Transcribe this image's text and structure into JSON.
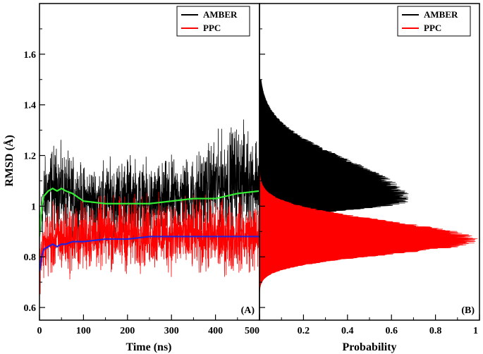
{
  "chart_data": [
    {
      "type": "line",
      "panel_label": "(A)",
      "xlabel": "Time (ns)",
      "ylabel": "RMSD (Å)",
      "xlim": [
        0,
        500
      ],
      "ylim": [
        0.55,
        1.8
      ],
      "x_ticks": [
        "0",
        "100",
        "200",
        "300",
        "400",
        "500"
      ],
      "y_ticks": [
        "0.6",
        "0.8",
        "1",
        "1.2",
        "1.4",
        "1.6"
      ],
      "legend_position": "top-right",
      "legend": [
        "AMBER",
        "PPC"
      ],
      "series": [
        {
          "name": "AMBER",
          "color": "#000000",
          "style": "fluctuating",
          "x": [
            0,
            10,
            25,
            50,
            75,
            100,
            150,
            200,
            250,
            300,
            350,
            400,
            450,
            500
          ],
          "mean": [
            0.9,
            1.03,
            1.07,
            1.06,
            1.04,
            1.02,
            1.02,
            1.04,
            1.01,
            1.03,
            1.04,
            1.08,
            1.11,
            1.1
          ],
          "spread": [
            0.1,
            0.12,
            0.14,
            0.13,
            0.12,
            0.11,
            0.12,
            0.13,
            0.12,
            0.12,
            0.13,
            0.15,
            0.17,
            0.15
          ]
        },
        {
          "name": "PPC",
          "color": "#ff0000",
          "style": "fluctuating",
          "x": [
            0,
            10,
            25,
            50,
            75,
            100,
            150,
            200,
            250,
            300,
            350,
            400,
            450,
            500
          ],
          "mean": [
            0.76,
            0.84,
            0.86,
            0.87,
            0.87,
            0.88,
            0.89,
            0.89,
            0.89,
            0.89,
            0.88,
            0.88,
            0.88,
            0.88
          ],
          "spread": [
            0.08,
            0.1,
            0.11,
            0.11,
            0.11,
            0.11,
            0.11,
            0.12,
            0.11,
            0.12,
            0.11,
            0.12,
            0.11,
            0.11
          ]
        },
        {
          "color": "#33ee33",
          "style": "smooth",
          "x": [
            0,
            5,
            10,
            20,
            30,
            40,
            50,
            60,
            75,
            100,
            150,
            200,
            250,
            300,
            350,
            400,
            450,
            500
          ],
          "y": [
            0.88,
            1.0,
            1.04,
            1.06,
            1.07,
            1.06,
            1.07,
            1.06,
            1.05,
            1.02,
            1.01,
            1.01,
            1.01,
            1.02,
            1.03,
            1.03,
            1.05,
            1.06
          ]
        },
        {
          "color": "#2222dd",
          "style": "smooth",
          "x": [
            0,
            5,
            10,
            20,
            30,
            40,
            50,
            60,
            75,
            100,
            150,
            200,
            250,
            300,
            350,
            400,
            450,
            500
          ],
          "y": [
            0.74,
            0.8,
            0.83,
            0.84,
            0.85,
            0.84,
            0.85,
            0.85,
            0.86,
            0.86,
            0.87,
            0.87,
            0.88,
            0.88,
            0.88,
            0.88,
            0.88,
            0.88
          ]
        }
      ]
    },
    {
      "type": "area",
      "panel_label": "(B)",
      "orientation": "horizontal",
      "xlabel": "Probability",
      "xlim": [
        0,
        1
      ],
      "x_ticks": [
        "0",
        "0.2",
        "0.4",
        "0.6",
        "0.8",
        "1"
      ],
      "shares_y_axis_with": "(A)",
      "legend_position": "top-right",
      "legend": [
        "AMBER",
        "PPC"
      ],
      "series": [
        {
          "name": "AMBER",
          "color": "#000000",
          "y_range": [
            0.93,
            1.5
          ],
          "peak_y": 1.02,
          "peak_probability": 0.65,
          "width_below": 0.035,
          "width_above": 0.16
        },
        {
          "name": "PPC",
          "color": "#ff0000",
          "y_range": [
            0.64,
            1.16
          ],
          "peak_y": 0.865,
          "peak_probability": 0.95,
          "width_below": 0.055,
          "width_above": 0.075
        }
      ]
    }
  ]
}
